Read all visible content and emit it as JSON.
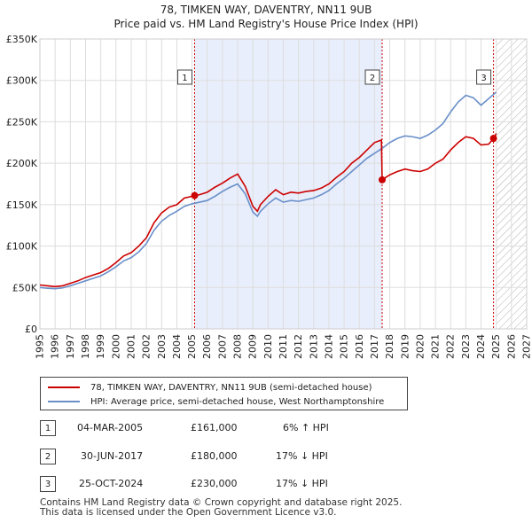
{
  "title_line1": "78, TIMKEN WAY, DAVENTRY, NN11 9UB",
  "title_line2": "Price paid vs. HM Land Registry's House Price Index (HPI)",
  "legend": {
    "property_label": "78, TIMKEN WAY, DAVENTRY, NN11 9UB (semi-detached house)",
    "hpi_label": "HPI: Average price, semi-detached house, West Northamptonshire"
  },
  "colors": {
    "property": "#cc0000",
    "hpi": "#6a8fc9",
    "shade": "#e8eefb",
    "hatch": "#b0b0b0"
  },
  "transactions": [
    {
      "num": "1",
      "date": "04-MAR-2005",
      "price": "£161,000",
      "hpi": "6% ↑ HPI"
    },
    {
      "num": "2",
      "date": "30-JUN-2017",
      "price": "£180,000",
      "hpi": "17% ↓ HPI"
    },
    {
      "num": "3",
      "date": "25-OCT-2024",
      "price": "£230,000",
      "hpi": "17% ↓ HPI"
    }
  ],
  "footer_line1": "Contains HM Land Registry data © Crown copyright and database right 2025.",
  "footer_line2": "This data is licensed under the Open Government Licence v3.0.",
  "chart_data": {
    "type": "line",
    "title": "78, TIMKEN WAY, DAVENTRY, NN11 9UB — Price paid vs. HM Land Registry's House Price Index (HPI)",
    "xlabel": "",
    "ylabel": "",
    "xlim": [
      1995,
      2027
    ],
    "ylim": [
      0,
      350000
    ],
    "x_ticks": [
      1995,
      1996,
      1997,
      1998,
      1999,
      2000,
      2001,
      2002,
      2003,
      2004,
      2005,
      2006,
      2007,
      2008,
      2009,
      2010,
      2011,
      2012,
      2013,
      2014,
      2015,
      2016,
      2017,
      2018,
      2019,
      2020,
      2021,
      2022,
      2023,
      2024,
      2025,
      2026,
      2027
    ],
    "y_ticks": [
      0,
      50000,
      100000,
      150000,
      200000,
      250000,
      300000,
      350000
    ],
    "y_tick_labels": [
      "£0",
      "£50K",
      "£100K",
      "£150K",
      "£200K",
      "£250K",
      "£300K",
      "£350K"
    ],
    "grid": true,
    "legend_position": "below",
    "shaded_region": [
      2005.17,
      2017.5
    ],
    "forecast_hatch_from": 2025.0,
    "series": [
      {
        "name": "78, TIMKEN WAY, DAVENTRY, NN11 9UB (semi-detached house)",
        "color": "#cc0000",
        "x": [
          1995.0,
          1995.5,
          1996.0,
          1996.5,
          1997.0,
          1997.5,
          1998.0,
          1998.5,
          1999.0,
          1999.5,
          2000.0,
          2000.5,
          2001.0,
          2001.5,
          2002.0,
          2002.5,
          2003.0,
          2003.5,
          2004.0,
          2004.5,
          2005.0,
          2005.17,
          2005.5,
          2006.0,
          2006.5,
          2007.0,
          2007.5,
          2008.0,
          2008.5,
          2009.0,
          2009.3,
          2009.5,
          2010.0,
          2010.5,
          2011.0,
          2011.5,
          2012.0,
          2012.5,
          2013.0,
          2013.5,
          2014.0,
          2014.5,
          2015.0,
          2015.5,
          2016.0,
          2016.5,
          2017.0,
          2017.45,
          2017.5,
          2018.0,
          2018.5,
          2019.0,
          2019.5,
          2020.0,
          2020.5,
          2021.0,
          2021.5,
          2022.0,
          2022.5,
          2023.0,
          2023.5,
          2024.0,
          2024.5,
          2024.82,
          2025.0
        ],
        "y": [
          53000,
          52000,
          51000,
          52000,
          55000,
          58000,
          62000,
          65000,
          68000,
          73000,
          80000,
          88000,
          92000,
          100000,
          110000,
          128000,
          140000,
          147000,
          150000,
          158000,
          160000,
          161000,
          162000,
          165000,
          171000,
          176000,
          182000,
          187000,
          172000,
          148000,
          142000,
          150000,
          160000,
          168000,
          162000,
          165000,
          164000,
          166000,
          167000,
          170000,
          175000,
          183000,
          190000,
          200000,
          207000,
          216000,
          225000,
          228000,
          180000,
          186000,
          190000,
          193000,
          191000,
          190000,
          193000,
          200000,
          205000,
          216000,
          225000,
          232000,
          230000,
          222000,
          223000,
          230000,
          236000
        ]
      },
      {
        "name": "HPI: Average price, semi-detached house, West Northamptonshire",
        "color": "#6a8fc9",
        "x": [
          1995.0,
          1995.5,
          1996.0,
          1996.5,
          1997.0,
          1997.5,
          1998.0,
          1998.5,
          1999.0,
          1999.5,
          2000.0,
          2000.5,
          2001.0,
          2001.5,
          2002.0,
          2002.5,
          2003.0,
          2003.5,
          2004.0,
          2004.5,
          2005.0,
          2005.5,
          2006.0,
          2006.5,
          2007.0,
          2007.5,
          2008.0,
          2008.5,
          2009.0,
          2009.3,
          2009.5,
          2010.0,
          2010.5,
          2011.0,
          2011.5,
          2012.0,
          2012.5,
          2013.0,
          2013.5,
          2014.0,
          2014.5,
          2015.0,
          2015.5,
          2016.0,
          2016.5,
          2017.0,
          2017.5,
          2018.0,
          2018.5,
          2019.0,
          2019.5,
          2020.0,
          2020.5,
          2021.0,
          2021.5,
          2022.0,
          2022.5,
          2023.0,
          2023.5,
          2024.0,
          2024.5,
          2025.0
        ],
        "y": [
          50000,
          49000,
          48500,
          49500,
          52000,
          55000,
          58000,
          61000,
          64000,
          69000,
          75000,
          82000,
          86000,
          93000,
          103000,
          119000,
          130000,
          137000,
          142000,
          148000,
          151000,
          153000,
          155000,
          160000,
          166000,
          171000,
          175000,
          163000,
          141000,
          136000,
          142000,
          151000,
          158000,
          153000,
          155000,
          154000,
          156000,
          158000,
          162000,
          167000,
          175000,
          182000,
          190000,
          198000,
          206000,
          212000,
          218000,
          225000,
          230000,
          233000,
          232000,
          230000,
          234000,
          240000,
          248000,
          262000,
          274000,
          282000,
          279000,
          270000,
          278000,
          286000
        ]
      }
    ],
    "markers": [
      {
        "label": "1",
        "x": 2005.17,
        "y": 161000
      },
      {
        "label": "2",
        "x": 2017.5,
        "y": 180000
      },
      {
        "label": "3",
        "x": 2024.82,
        "y": 230000
      }
    ]
  }
}
